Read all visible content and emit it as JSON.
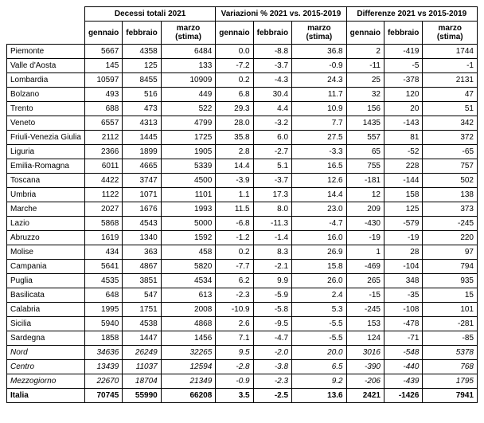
{
  "type": "table",
  "background_color": "#ffffff",
  "border_color": "#000000",
  "text_color": "#000000",
  "groups": [
    "Decessi totali 2021",
    "Variazioni % 2021 vs. 2015-2019",
    "Differenze 2021 vs 2015-2019"
  ],
  "subcols": [
    "gennaio",
    "febbraio",
    "marzo (stima)"
  ],
  "rows": [
    {
      "label": "Piemonte",
      "style": "normal",
      "cells": [
        "5667",
        "4358",
        "6484",
        "0.0",
        "-8.8",
        "36.8",
        "2",
        "-419",
        "1744"
      ]
    },
    {
      "label": "Valle d'Aosta",
      "style": "normal",
      "cells": [
        "145",
        "125",
        "133",
        "-7.2",
        "-3.7",
        "-0.9",
        "-11",
        "-5",
        "-1"
      ]
    },
    {
      "label": "Lombardia",
      "style": "normal",
      "cells": [
        "10597",
        "8455",
        "10909",
        "0.2",
        "-4.3",
        "24.3",
        "25",
        "-378",
        "2131"
      ]
    },
    {
      "label": "Bolzano",
      "style": "normal",
      "cells": [
        "493",
        "516",
        "449",
        "6.8",
        "30.4",
        "11.7",
        "32",
        "120",
        "47"
      ]
    },
    {
      "label": "Trento",
      "style": "normal",
      "cells": [
        "688",
        "473",
        "522",
        "29.3",
        "4.4",
        "10.9",
        "156",
        "20",
        "51"
      ]
    },
    {
      "label": "Veneto",
      "style": "normal",
      "cells": [
        "6557",
        "4313",
        "4799",
        "28.0",
        "-3.2",
        "7.7",
        "1435",
        "-143",
        "342"
      ]
    },
    {
      "label": "Friuli-Venezia Giulia",
      "style": "normal",
      "cells": [
        "2112",
        "1445",
        "1725",
        "35.8",
        "6.0",
        "27.5",
        "557",
        "81",
        "372"
      ]
    },
    {
      "label": "Liguria",
      "style": "normal",
      "cells": [
        "2366",
        "1899",
        "1905",
        "2.8",
        "-2.7",
        "-3.3",
        "65",
        "-52",
        "-65"
      ]
    },
    {
      "label": "Emilia-Romagna",
      "style": "normal",
      "cells": [
        "6011",
        "4665",
        "5339",
        "14.4",
        "5.1",
        "16.5",
        "755",
        "228",
        "757"
      ]
    },
    {
      "label": "Toscana",
      "style": "normal",
      "cells": [
        "4422",
        "3747",
        "4500",
        "-3.9",
        "-3.7",
        "12.6",
        "-181",
        "-144",
        "502"
      ]
    },
    {
      "label": "Umbria",
      "style": "normal",
      "cells": [
        "1122",
        "1071",
        "1101",
        "1.1",
        "17.3",
        "14.4",
        "12",
        "158",
        "138"
      ]
    },
    {
      "label": "Marche",
      "style": "normal",
      "cells": [
        "2027",
        "1676",
        "1993",
        "11.5",
        "8.0",
        "23.0",
        "209",
        "125",
        "373"
      ]
    },
    {
      "label": "Lazio",
      "style": "normal",
      "cells": [
        "5868",
        "4543",
        "5000",
        "-6.8",
        "-11.3",
        "-4.7",
        "-430",
        "-579",
        "-245"
      ]
    },
    {
      "label": "Abruzzo",
      "style": "normal",
      "cells": [
        "1619",
        "1340",
        "1592",
        "-1.2",
        "-1.4",
        "16.0",
        "-19",
        "-19",
        "220"
      ]
    },
    {
      "label": "Molise",
      "style": "normal",
      "cells": [
        "434",
        "363",
        "458",
        "0.2",
        "8.3",
        "26.9",
        "1",
        "28",
        "97"
      ]
    },
    {
      "label": "Campania",
      "style": "normal",
      "cells": [
        "5641",
        "4867",
        "5820",
        "-7.7",
        "-2.1",
        "15.8",
        "-469",
        "-104",
        "794"
      ]
    },
    {
      "label": "Puglia",
      "style": "normal",
      "cells": [
        "4535",
        "3851",
        "4534",
        "6.2",
        "9.9",
        "26.0",
        "265",
        "348",
        "935"
      ]
    },
    {
      "label": "Basilicata",
      "style": "normal",
      "cells": [
        "648",
        "547",
        "613",
        "-2.3",
        "-5.9",
        "2.4",
        "-15",
        "-35",
        "15"
      ]
    },
    {
      "label": "Calabria",
      "style": "normal",
      "cells": [
        "1995",
        "1751",
        "2008",
        "-10.9",
        "-5.8",
        "5.3",
        "-245",
        "-108",
        "101"
      ]
    },
    {
      "label": "Sicilia",
      "style": "normal",
      "cells": [
        "5940",
        "4538",
        "4868",
        "2.6",
        "-9.5",
        "-5.5",
        "153",
        "-478",
        "-281"
      ]
    },
    {
      "label": "Sardegna",
      "style": "normal",
      "cells": [
        "1858",
        "1447",
        "1456",
        "7.1",
        "-4.7",
        "-5.5",
        "124",
        "-71",
        "-85"
      ]
    },
    {
      "label": "Nord",
      "style": "italic",
      "cells": [
        "34636",
        "26249",
        "32265",
        "9.5",
        "-2.0",
        "20.0",
        "3016",
        "-548",
        "5378"
      ]
    },
    {
      "label": "Centro",
      "style": "italic",
      "cells": [
        "13439",
        "11037",
        "12594",
        "-2.8",
        "-3.8",
        "6.5",
        "-390",
        "-440",
        "768"
      ]
    },
    {
      "label": "Mezzogiorno",
      "style": "italic",
      "cells": [
        "22670",
        "18704",
        "21349",
        "-0.9",
        "-2.3",
        "9.2",
        "-206",
        "-439",
        "1795"
      ]
    },
    {
      "label": "Italia",
      "style": "bold",
      "cells": [
        "70745",
        "55990",
        "66208",
        "3.5",
        "-2.5",
        "13.6",
        "2421",
        "-1426",
        "7941"
      ]
    }
  ]
}
